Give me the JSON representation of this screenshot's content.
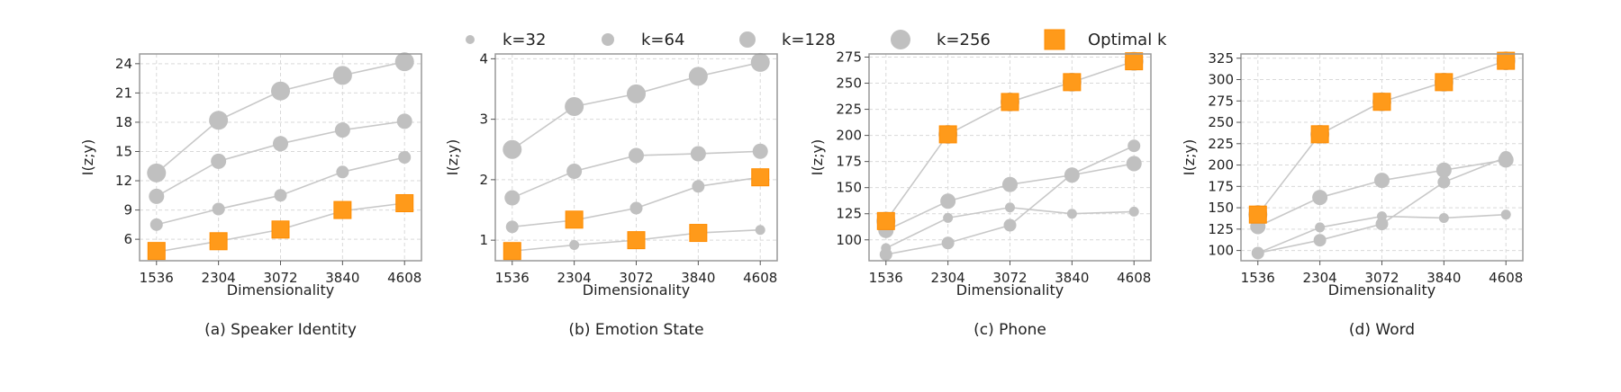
{
  "legend": {
    "items": [
      {
        "label": "k=32",
        "size": 32
      },
      {
        "label": "k=64",
        "size": 64
      },
      {
        "label": "k=128",
        "size": 128
      },
      {
        "label": "k=256",
        "size": 256
      },
      {
        "label": "Optimal k",
        "marker": "orange-square"
      }
    ]
  },
  "colors": {
    "series": "#c0c0c0",
    "line": "#c8c8c8",
    "optimal": "#ff9a1a"
  },
  "chart_data": [
    {
      "type": "line",
      "caption": "(a) Speaker Identity",
      "xlabel": "Dimensionality",
      "ylabel": "I(z;y)",
      "x": [
        1536,
        2304,
        3072,
        3840,
        4608
      ],
      "ylim": [
        3.8,
        25.0
      ],
      "yticks": [
        6,
        9,
        12,
        15,
        18,
        21,
        24
      ],
      "series": [
        {
          "k": 32,
          "values": [
            4.7,
            5.8,
            7.0,
            8.9,
            9.7
          ]
        },
        {
          "k": 64,
          "values": [
            7.5,
            9.1,
            10.5,
            12.9,
            14.4
          ]
        },
        {
          "k": 128,
          "values": [
            10.4,
            14.0,
            15.8,
            17.2,
            18.1
          ]
        },
        {
          "k": 256,
          "values": [
            12.8,
            18.2,
            21.2,
            22.8,
            24.2
          ]
        }
      ],
      "optimal": [
        4.8,
        5.8,
        7.0,
        9.0,
        9.7
      ]
    },
    {
      "type": "line",
      "caption": "(b) Emotion State",
      "xlabel": "Dimensionality",
      "ylabel": "I(z;y)",
      "x": [
        1536,
        2304,
        3072,
        3840,
        4608
      ],
      "ylim": [
        0.66,
        4.08
      ],
      "yticks": [
        1,
        2,
        3,
        4
      ],
      "series": [
        {
          "k": 32,
          "values": [
            0.82,
            0.92,
            1.0,
            1.12,
            1.17
          ]
        },
        {
          "k": 64,
          "values": [
            1.22,
            1.33,
            1.53,
            1.89,
            2.04
          ]
        },
        {
          "k": 128,
          "values": [
            1.7,
            2.14,
            2.4,
            2.43,
            2.47
          ]
        },
        {
          "k": 256,
          "values": [
            2.5,
            3.21,
            3.42,
            3.71,
            3.94
          ]
        }
      ],
      "optimal": [
        0.82,
        1.34,
        1.0,
        1.12,
        2.04
      ]
    },
    {
      "type": "line",
      "caption": "(c) Phone",
      "xlabel": "Dimensionality",
      "ylabel": "I(z;y)",
      "x": [
        1536,
        2304,
        3072,
        3840,
        4608
      ],
      "ylim": [
        80,
        278
      ],
      "yticks": [
        100,
        125,
        150,
        175,
        200,
        225,
        250,
        275
      ],
      "series": [
        {
          "k": 32,
          "values": [
            92,
            121,
            131,
            125,
            127
          ]
        },
        {
          "k": 64,
          "values": [
            86,
            97,
            114,
            163,
            190
          ]
        },
        {
          "k": 128,
          "values": [
            109,
            137,
            153,
            162,
            173
          ]
        },
        {
          "k": 256,
          "values": [
            118,
            201,
            232,
            251,
            271
          ]
        }
      ],
      "optimal": [
        118,
        201,
        232,
        251,
        271
      ]
    },
    {
      "type": "line",
      "caption": "(d) Word",
      "xlabel": "Dimensionality",
      "ylabel": "I(z;y)",
      "x": [
        1536,
        2304,
        3072,
        3840,
        4608
      ],
      "ylim": [
        88,
        330
      ],
      "yticks": [
        100,
        125,
        150,
        175,
        200,
        225,
        250,
        275,
        300,
        325
      ],
      "series": [
        {
          "k": 32,
          "values": [
            97,
            127,
            140,
            138,
            142
          ]
        },
        {
          "k": 64,
          "values": [
            97,
            112,
            131,
            180,
            209
          ]
        },
        {
          "k": 128,
          "values": [
            128,
            162,
            182,
            194,
            206
          ]
        },
        {
          "k": 256,
          "values": [
            142,
            236,
            274,
            297,
            322
          ]
        }
      ],
      "optimal": [
        142,
        236,
        274,
        297,
        322
      ]
    }
  ]
}
